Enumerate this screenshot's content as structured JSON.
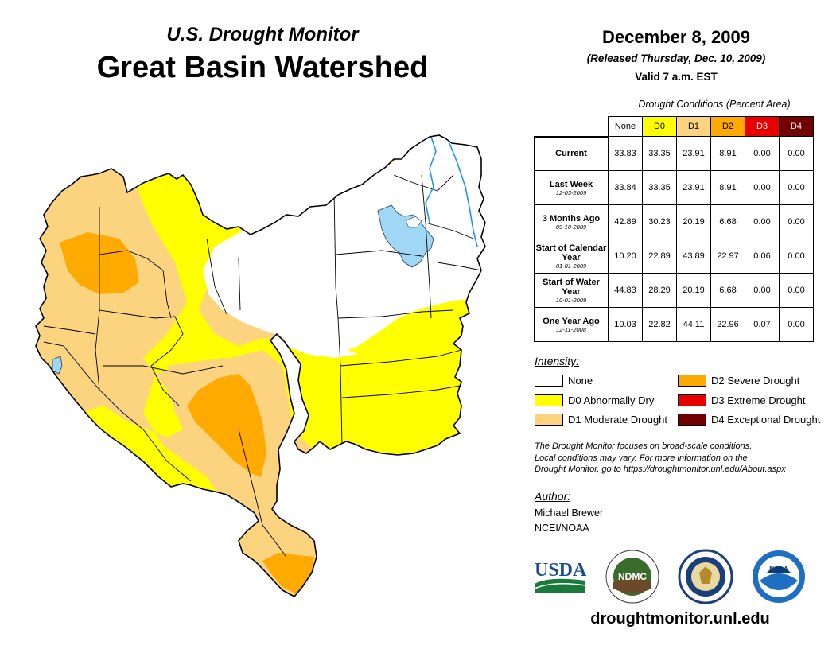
{
  "header": {
    "subtitle": "U.S. Drought Monitor",
    "title": "Great Basin Watershed",
    "date": "December 8, 2009",
    "released": "(Released Thursday, Dec. 10, 2009)",
    "valid": "Valid 7 a.m. EST"
  },
  "conditions": {
    "title": "Drought Conditions (Percent Area)",
    "columns": [
      "None",
      "D0",
      "D1",
      "D2",
      "D3",
      "D4"
    ],
    "column_colors": [
      "#ffffff",
      "#ffff00",
      "#fcd37f",
      "#ffaa00",
      "#e60000",
      "#730000"
    ],
    "rows": [
      {
        "label": "Current",
        "date": "",
        "values": [
          "33.83",
          "33.35",
          "23.91",
          "8.91",
          "0.00",
          "0.00"
        ]
      },
      {
        "label": "Last Week",
        "date": "12-03-2009",
        "values": [
          "33.84",
          "33.35",
          "23.91",
          "8.91",
          "0.00",
          "0.00"
        ]
      },
      {
        "label": "3 Months Ago",
        "date": "09-10-2009",
        "values": [
          "42.89",
          "30.23",
          "20.19",
          "6.68",
          "0.00",
          "0.00"
        ]
      },
      {
        "label": "Start of Calendar Year",
        "date": "01-01-2009",
        "values": [
          "10.20",
          "22.89",
          "43.89",
          "22.97",
          "0.06",
          "0.00"
        ]
      },
      {
        "label": "Start of Water Year",
        "date": "10-01-2009",
        "values": [
          "44.83",
          "28.29",
          "20.19",
          "6.68",
          "0.00",
          "0.00"
        ]
      },
      {
        "label": "One Year Ago",
        "date": "12-11-2008",
        "values": [
          "10.03",
          "22.82",
          "44.11",
          "22.96",
          "0.07",
          "0.00"
        ]
      }
    ]
  },
  "legend": {
    "title": "Intensity:",
    "items": [
      {
        "label": "None",
        "color": "#ffffff"
      },
      {
        "label": "D0 Abnormally Dry",
        "color": "#ffff00"
      },
      {
        "label": "D1 Moderate Drought",
        "color": "#fcd37f"
      },
      {
        "label": "D2 Severe Drought",
        "color": "#ffaa00"
      },
      {
        "label": "D3 Extreme Drought",
        "color": "#e60000"
      },
      {
        "label": "D4 Exceptional Drought",
        "color": "#730000"
      }
    ]
  },
  "note": {
    "line1": "The Drought Monitor focuses on broad-scale conditions.",
    "line2": "Local conditions may vary. For more information on the",
    "line3": "Drought Monitor, go to https://droughtmonitor.unl.edu/About.aspx"
  },
  "author": {
    "title": "Author:",
    "name": "Michael Brewer",
    "org": "NCEI/NOAA"
  },
  "logos": {
    "usda": "USDA",
    "ndmc": "NDMC",
    "noaa": "NOAA"
  },
  "map_colors": {
    "water": "#9fd7f5",
    "river": "#1e90ff",
    "boundary": "#000000"
  },
  "website": "droughtmonitor.unl.edu"
}
